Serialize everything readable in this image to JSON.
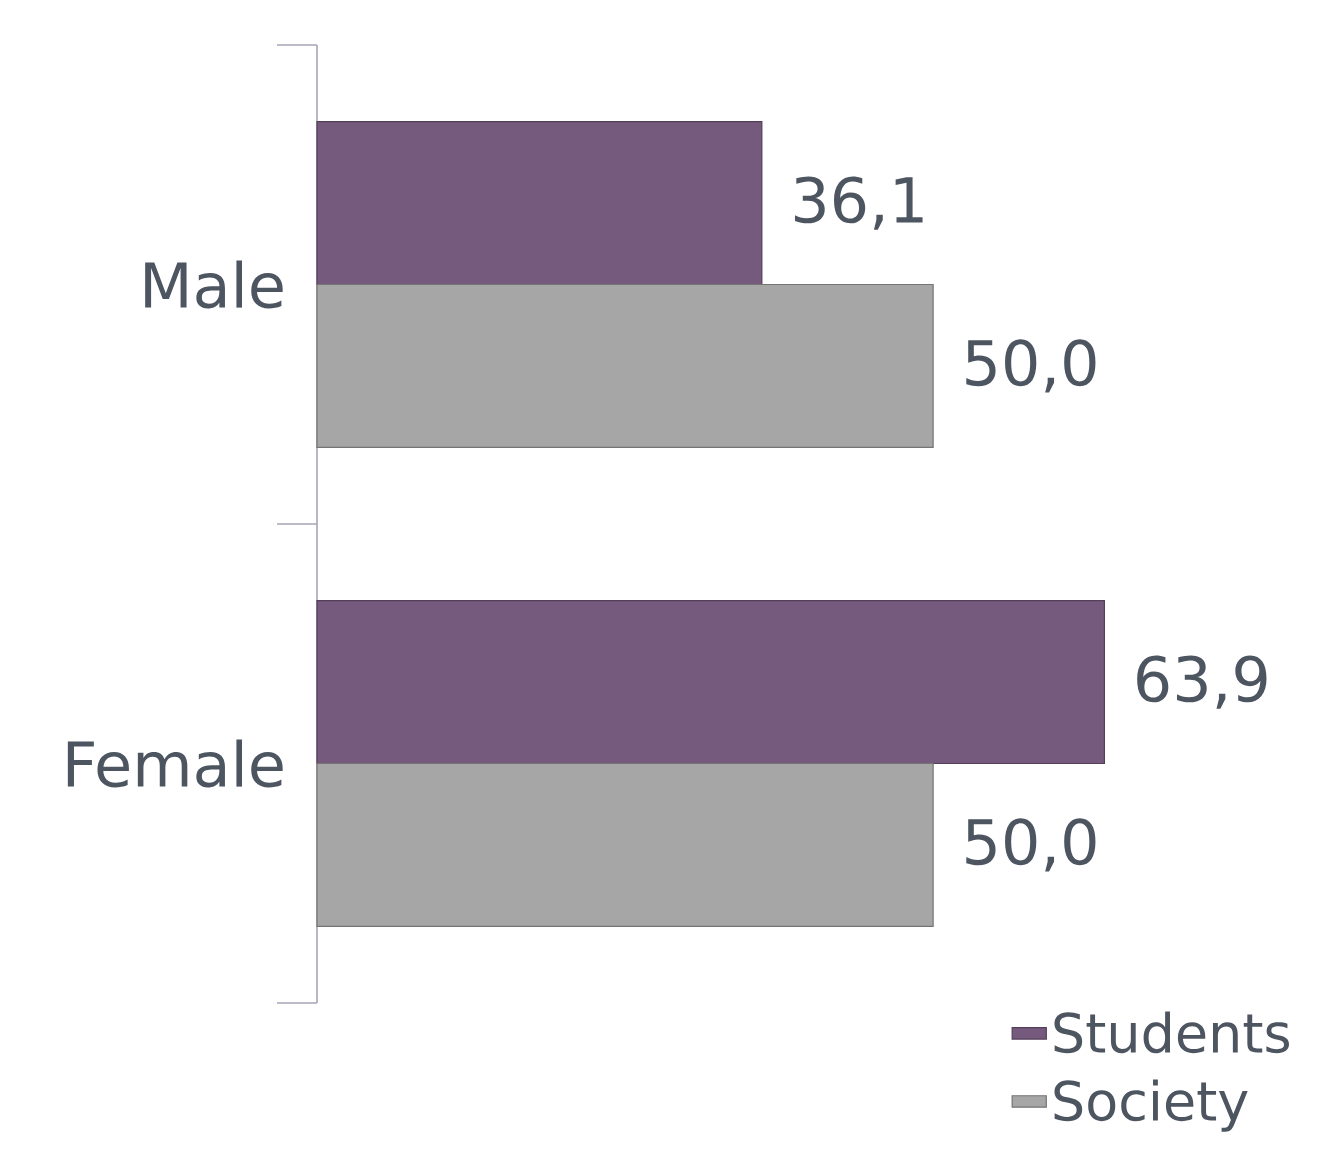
{
  "chart_data": {
    "type": "bar",
    "orientation": "horizontal",
    "categories": [
      "Male",
      "Female"
    ],
    "series": [
      {
        "name": "Students",
        "color": "#765a7e",
        "values": [
          36.1,
          63.9
        ],
        "value_labels": [
          "36,1",
          "63,9"
        ]
      },
      {
        "name": "Society",
        "color": "#a6a6a6",
        "values": [
          50.0,
          50.0
        ],
        "value_labels": [
          "50,0",
          "50,0"
        ]
      }
    ],
    "legend": "bottom right"
  }
}
